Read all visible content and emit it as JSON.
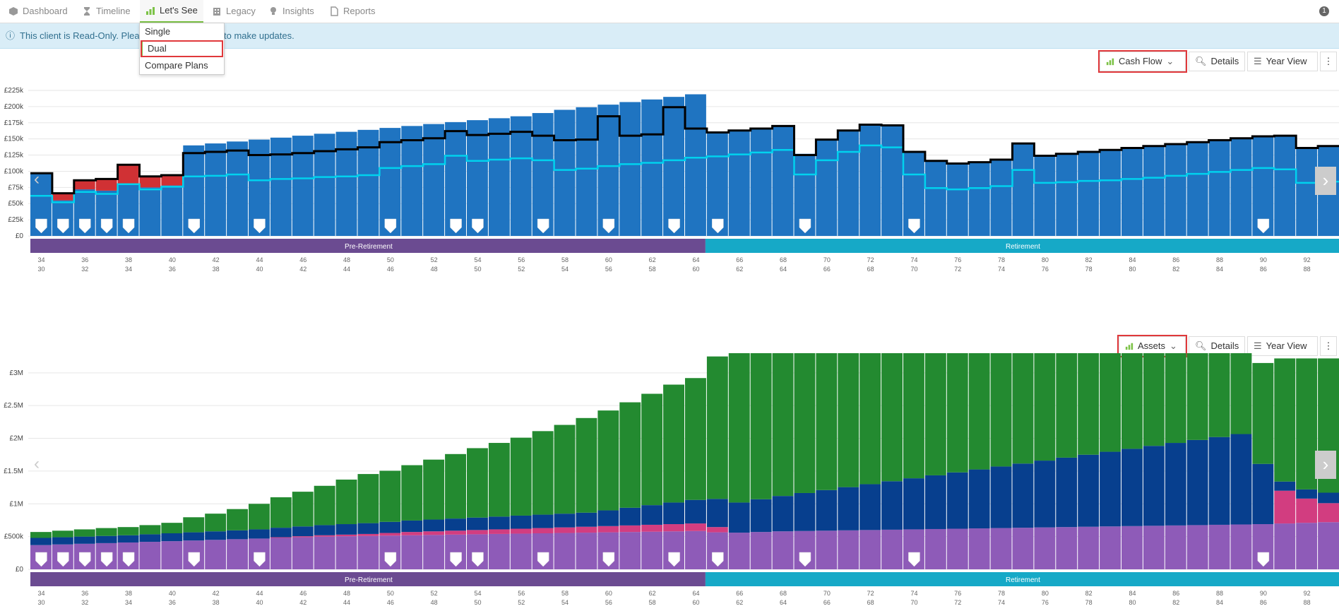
{
  "tabs": [
    {
      "label": "Dashboard",
      "icon": "dashboard-icon",
      "active": false
    },
    {
      "label": "Timeline",
      "icon": "hourglass-icon",
      "active": false
    },
    {
      "label": "Let's See",
      "icon": "bar-chart-icon",
      "active": true
    },
    {
      "label": "Legacy",
      "icon": "building-icon",
      "active": false
    },
    {
      "label": "Insights",
      "icon": "lightbulb-icon",
      "active": false
    },
    {
      "label": "Reports",
      "icon": "document-icon",
      "active": false
    }
  ],
  "notification_count": "1",
  "banner": {
    "text_pre": "This client is Read-Only. Please",
    "text_post": "to make updates."
  },
  "dropdown": {
    "items": [
      "Single",
      "Dual",
      "Compare Plans"
    ],
    "selected": "Dual"
  },
  "top_panel": {
    "chart_selector": "Cash Flow",
    "details_label": "Details",
    "yearview_label": "Year View"
  },
  "bottom_panel": {
    "chart_selector": "Assets",
    "details_label": "Details",
    "yearview_label": "Year View"
  },
  "colors": {
    "income": "#1f74c1",
    "shortfall": "#d03134",
    "outgoings": "#00d2ee",
    "total": "#000000",
    "green": "#238a30",
    "navy": "#073f8e",
    "pink": "#d23d80",
    "purple": "#8e5bb8",
    "pre_retirement": "#6b4b91",
    "retirement": "#16a9c7",
    "accent": "#7cc246"
  },
  "phases": {
    "pre": "Pre-Retirement",
    "post": "Retirement"
  },
  "ages_a": [
    "34",
    "36",
    "38",
    "40",
    "42",
    "44",
    "46",
    "48",
    "50",
    "52",
    "54",
    "56",
    "58",
    "60",
    "62",
    "64",
    "66",
    "68",
    "70",
    "72",
    "74",
    "76",
    "78",
    "80",
    "82",
    "84",
    "86",
    "88",
    "90",
    "92"
  ],
  "ages_b": [
    "30",
    "32",
    "34",
    "36",
    "38",
    "40",
    "42",
    "44",
    "46",
    "48",
    "50",
    "52",
    "54",
    "56",
    "58",
    "60",
    "62",
    "64",
    "66",
    "68",
    "70",
    "72",
    "74",
    "76",
    "78",
    "80",
    "82",
    "84",
    "86",
    "88"
  ],
  "event_marker_ages": [
    34,
    35,
    36,
    37,
    38,
    41,
    44,
    50,
    53,
    54,
    57,
    60,
    63,
    65,
    69,
    74,
    90
  ],
  "chart_data": [
    {
      "type": "bar",
      "name": "Cash Flow",
      "x": [
        34,
        35,
        36,
        37,
        38,
        39,
        40,
        41,
        42,
        43,
        44,
        45,
        46,
        47,
        48,
        49,
        50,
        51,
        52,
        53,
        54,
        55,
        56,
        57,
        58,
        59,
        60,
        61,
        62,
        63,
        64,
        65,
        66,
        67,
        68,
        69,
        70,
        71,
        72,
        73,
        74,
        75,
        76,
        77,
        78,
        79,
        80,
        81,
        82,
        83,
        84,
        85,
        86,
        87,
        88,
        89,
        90,
        91,
        92,
        93
      ],
      "yticks": [
        "£0",
        "£25k",
        "£50k",
        "£75k",
        "£100k",
        "£125k",
        "£150k",
        "£175k",
        "£200k",
        "£225k"
      ],
      "ylim": [
        0,
        225000
      ],
      "income": [
        97000,
        55000,
        72000,
        70000,
        80000,
        75000,
        78000,
        140000,
        143000,
        146000,
        149000,
        152000,
        155000,
        158000,
        161000,
        164000,
        167000,
        170000,
        173000,
        176000,
        179000,
        182000,
        185000,
        190000,
        195000,
        199000,
        203000,
        207000,
        211000,
        215000,
        219000,
        160000,
        163000,
        166000,
        170000,
        127000,
        148000,
        163000,
        172000,
        171000,
        130000,
        117000,
        112000,
        114000,
        118000,
        143000,
        124000,
        127000,
        130000,
        133000,
        136000,
        139000,
        142000,
        145000,
        148000,
        151000,
        154000,
        155000,
        136000,
        139000
      ],
      "shortfall": [
        0,
        10000,
        15000,
        18000,
        30000,
        17000,
        17000,
        0,
        0,
        0,
        0,
        0,
        0,
        0,
        0,
        0,
        0,
        0,
        0,
        0,
        0,
        0,
        0,
        0,
        0,
        0,
        0,
        0,
        0,
        0,
        0,
        0,
        0,
        0,
        0,
        0,
        0,
        0,
        0,
        0,
        0,
        0,
        0,
        0,
        0,
        0,
        0,
        0,
        0,
        0,
        0,
        0,
        0,
        0,
        0,
        0,
        0,
        0,
        0,
        0
      ],
      "total_outgoings": [
        97000,
        66000,
        86000,
        88000,
        110000,
        92000,
        94000,
        128000,
        130000,
        132000,
        125000,
        126000,
        128000,
        131000,
        134000,
        137000,
        145000,
        148000,
        151000,
        162000,
        156000,
        158000,
        161000,
        155000,
        148000,
        149000,
        185000,
        155000,
        157000,
        199000,
        166000,
        160000,
        163000,
        166000,
        170000,
        125000,
        149000,
        163000,
        172000,
        171000,
        130000,
        116000,
        112000,
        114000,
        118000,
        143000,
        124000,
        127000,
        130000,
        133000,
        136000,
        139000,
        142000,
        145000,
        148000,
        151000,
        154000,
        155000,
        136000,
        139000
      ],
      "spending": [
        62000,
        52000,
        68000,
        65000,
        80000,
        72000,
        76000,
        92000,
        93000,
        95000,
        86000,
        88000,
        89000,
        91000,
        92000,
        94000,
        105000,
        108000,
        111000,
        124000,
        116000,
        118000,
        120000,
        117000,
        102000,
        104000,
        108000,
        111000,
        113000,
        117000,
        121000,
        123000,
        126000,
        129000,
        133000,
        95000,
        117000,
        130000,
        140000,
        137000,
        95000,
        74000,
        72000,
        74000,
        77000,
        102000,
        82000,
        83000,
        85000,
        86000,
        88000,
        90000,
        93000,
        96000,
        99000,
        102000,
        105000,
        103000,
        82000,
        84000
      ]
    },
    {
      "type": "bar",
      "name": "Assets",
      "x": [
        34,
        35,
        36,
        37,
        38,
        39,
        40,
        41,
        42,
        43,
        44,
        45,
        46,
        47,
        48,
        49,
        50,
        51,
        52,
        53,
        54,
        55,
        56,
        57,
        58,
        59,
        60,
        61,
        62,
        63,
        64,
        65,
        66,
        67,
        68,
        69,
        70,
        71,
        72,
        73,
        74,
        75,
        76,
        77,
        78,
        79,
        80,
        81,
        82,
        83,
        84,
        85,
        86,
        87,
        88,
        89,
        90,
        91,
        92,
        93
      ],
      "yticks": [
        "£0",
        "£500k",
        "£1M",
        "£1.5M",
        "£2M",
        "£2.5M",
        "£3M"
      ],
      "ylim": [
        0,
        3300000
      ],
      "purple": [
        370000,
        380000,
        390000,
        400000,
        410000,
        420000,
        430000,
        440000,
        450000,
        460000,
        470000,
        480000,
        490000,
        500000,
        505000,
        510000,
        515000,
        520000,
        525000,
        530000,
        535000,
        540000,
        545000,
        550000,
        555000,
        560000,
        565000,
        570000,
        575000,
        580000,
        585000,
        565000,
        560000,
        570000,
        580000,
        585000,
        590000,
        595000,
        600000,
        605000,
        610000,
        615000,
        620000,
        625000,
        630000,
        635000,
        640000,
        645000,
        650000,
        655000,
        660000,
        665000,
        670000,
        675000,
        680000,
        685000,
        690000,
        700000,
        710000,
        720000
      ],
      "pink": [
        0,
        0,
        0,
        0,
        0,
        0,
        0,
        0,
        0,
        0,
        0,
        10000,
        15000,
        20000,
        25000,
        30000,
        40000,
        50000,
        55000,
        60000,
        65000,
        70000,
        75000,
        80000,
        85000,
        90000,
        95000,
        100000,
        105000,
        110000,
        115000,
        80000,
        0,
        0,
        0,
        0,
        0,
        0,
        0,
        0,
        0,
        0,
        0,
        0,
        0,
        0,
        0,
        0,
        0,
        0,
        0,
        0,
        0,
        0,
        0,
        0,
        0,
        500000,
        370000,
        290000
      ],
      "navy": [
        110000,
        110000,
        110000,
        110000,
        110000,
        115000,
        120000,
        125000,
        130000,
        135000,
        140000,
        145000,
        150000,
        155000,
        160000,
        165000,
        170000,
        175000,
        180000,
        185000,
        190000,
        195000,
        200000,
        205000,
        210000,
        215000,
        240000,
        270000,
        300000,
        330000,
        360000,
        430000,
        460000,
        500000,
        540000,
        580000,
        620000,
        660000,
        700000,
        740000,
        780000,
        820000,
        860000,
        900000,
        940000,
        980000,
        1020000,
        1060000,
        1100000,
        1140000,
        1180000,
        1220000,
        1260000,
        1300000,
        1340000,
        1380000,
        920000,
        140000,
        140000,
        160000
      ],
      "green": [
        90000,
        100000,
        110000,
        120000,
        125000,
        140000,
        160000,
        230000,
        270000,
        325000,
        390000,
        465000,
        530000,
        600000,
        680000,
        750000,
        780000,
        845000,
        915000,
        985000,
        1060000,
        1125000,
        1190000,
        1275000,
        1355000,
        1445000,
        1525000,
        1610000,
        1700000,
        1800000,
        1860000,
        2175000,
        2410000,
        2570000,
        2680000,
        2635000,
        2590000,
        2525000,
        2460000,
        2400000,
        2340000,
        2280000,
        2260000,
        2240000,
        2240000,
        2200000,
        2180000,
        2155000,
        2130000,
        2120000,
        2080000,
        2050000,
        2010000,
        1960000,
        1920000,
        1875000,
        1540000,
        1880000,
        2000000,
        2050000
      ]
    }
  ]
}
